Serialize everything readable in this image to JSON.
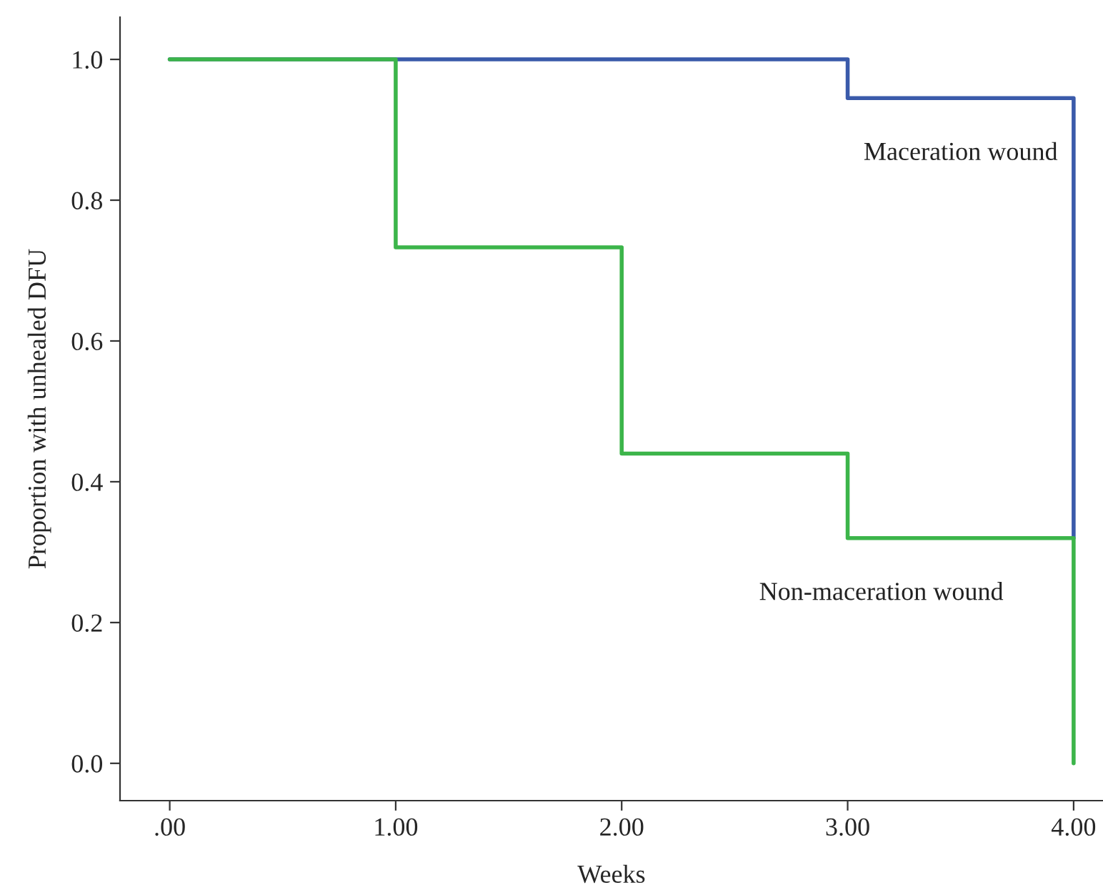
{
  "chart_data": {
    "type": "step",
    "xlabel": "Weeks",
    "ylabel": "Proportion with unhealed DFU",
    "series": [
      {
        "name": "Maceration wound",
        "color": "#3a5aaa",
        "x": [
          0,
          3,
          4
        ],
        "values": [
          1.0,
          0.945,
          0.32
        ]
      },
      {
        "name": "Non-maceration wound",
        "color": "#3cb54a",
        "x": [
          0,
          1,
          2,
          3,
          4
        ],
        "values": [
          1.0,
          0.733,
          0.44,
          0.32,
          0.0
        ]
      }
    ],
    "xlim": [
      -0.22,
      4.13
    ],
    "ylim": [
      -0.053,
      1.06
    ],
    "xticks": [
      {
        "value": 0,
        "label": ".00"
      },
      {
        "value": 1,
        "label": "1.00"
      },
      {
        "value": 2,
        "label": "2.00"
      },
      {
        "value": 3,
        "label": "3.00"
      },
      {
        "value": 4,
        "label": "4.00"
      }
    ],
    "yticks": [
      {
        "value": 0,
        "label": "0.0"
      },
      {
        "value": 0.2,
        "label": "0.2"
      },
      {
        "value": 0.4,
        "label": "0.4"
      },
      {
        "value": 0.6,
        "label": "0.6"
      },
      {
        "value": 0.8,
        "label": "0.8"
      },
      {
        "value": 1.0,
        "label": "1.0"
      }
    ],
    "grid": false,
    "legend": false
  }
}
